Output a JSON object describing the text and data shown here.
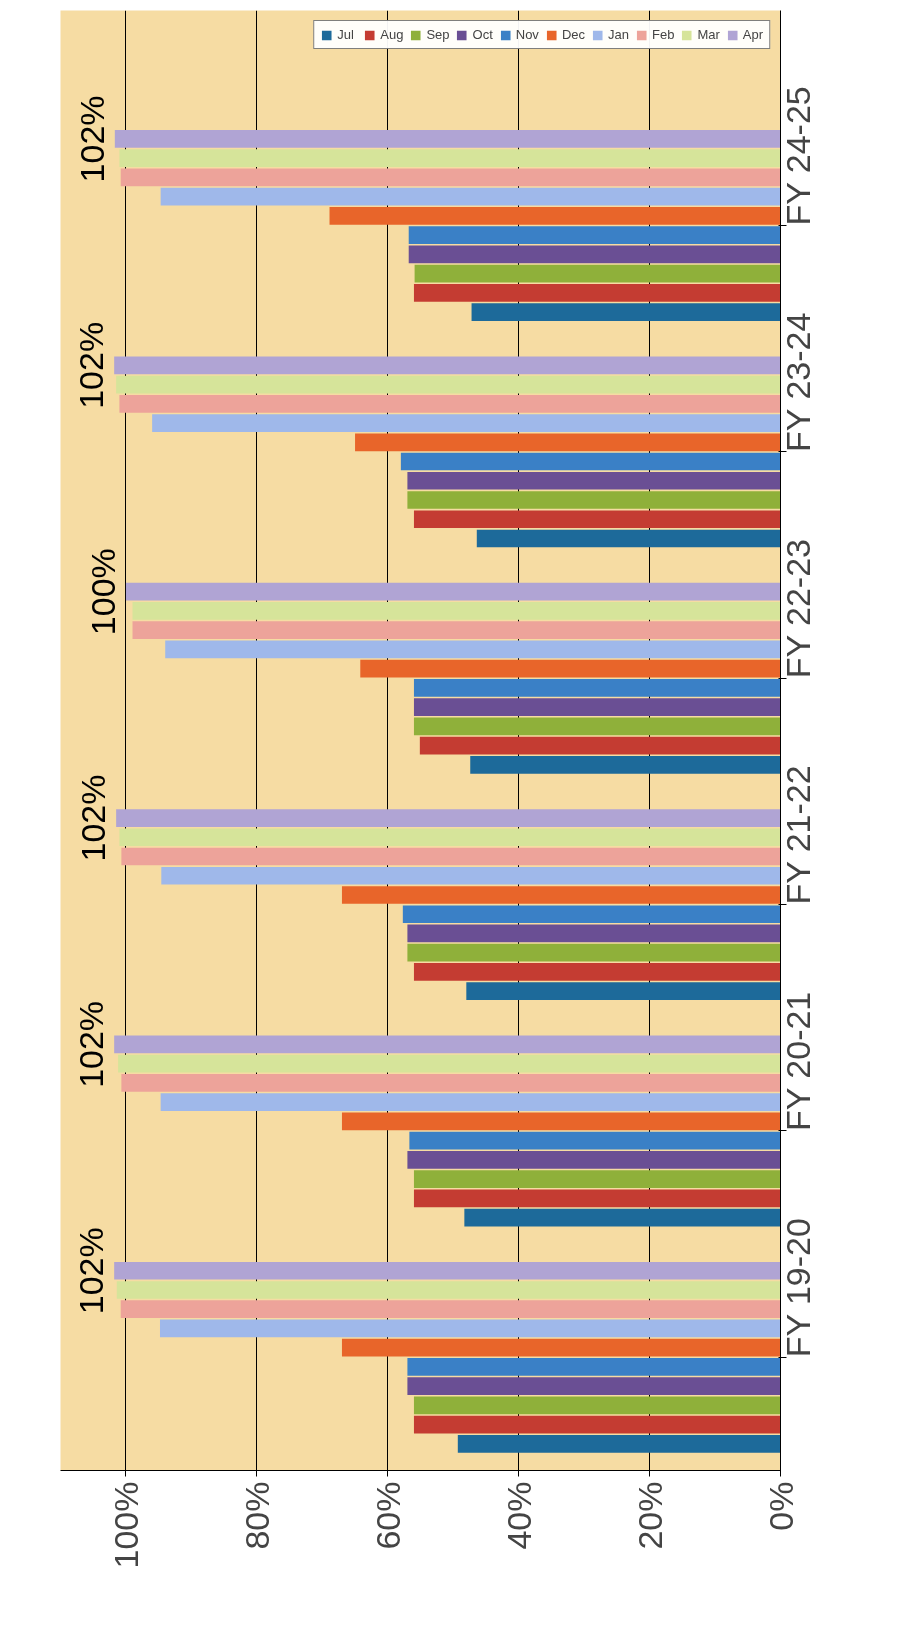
{
  "chart_data": {
    "type": "bar",
    "orientation": "horizontal",
    "categories": [
      "FY 24-25",
      "FY 23-24",
      "FY 22-23",
      "FY 21-22",
      "FY 20-21",
      "FY 19-20"
    ],
    "series": [
      {
        "name": "Jul",
        "color": "#1d6a9a",
        "values": [
          47.2,
          46.4,
          47.4,
          48,
          48.3,
          49.3
        ]
      },
      {
        "name": "Aug",
        "color": "#c43c32",
        "values": [
          56,
          56,
          55.1,
          56,
          56,
          56
        ]
      },
      {
        "name": "Sep",
        "color": "#8fb03a",
        "values": [
          55.9,
          57,
          56,
          57,
          56,
          56
        ]
      },
      {
        "name": "Oct",
        "color": "#6a4f94",
        "values": [
          56.8,
          57,
          56,
          57,
          57,
          57
        ]
      },
      {
        "name": "Nov",
        "color": "#3a80c6",
        "values": [
          56.8,
          58,
          56,
          57.7,
          56.7,
          57
        ]
      },
      {
        "name": "Dec",
        "color": "#e8652a",
        "values": [
          68.9,
          65,
          64.2,
          67,
          67,
          67
        ]
      },
      {
        "name": "Jan",
        "color": "#9fb8ea",
        "values": [
          94.7,
          96,
          94,
          94.6,
          94.7,
          94.8
        ]
      },
      {
        "name": "Feb",
        "color": "#eda39a",
        "values": [
          100.8,
          101,
          99,
          100.7,
          100.7,
          100.8
        ]
      },
      {
        "name": "Mar",
        "color": "#d6e49a",
        "values": [
          101,
          101.5,
          99,
          101,
          101.2,
          101.4
        ]
      },
      {
        "name": "Apr",
        "color": "#b0a4d4",
        "values": [
          101.7,
          101.8,
          100,
          101.5,
          101.8,
          101.8
        ],
        "value_labels": [
          "102%",
          "102%",
          "100%",
          "102%",
          "102%",
          "102%"
        ]
      }
    ],
    "xlim": [
      110,
      0
    ],
    "xticks": [
      {
        "value": 0,
        "label": "0%"
      },
      {
        "value": 20,
        "label": "20%"
      },
      {
        "value": 40,
        "label": "40%"
      },
      {
        "value": 60,
        "label": "60%"
      },
      {
        "value": 80,
        "label": "80%"
      },
      {
        "value": 100,
        "label": "100%"
      }
    ],
    "grid": "x",
    "legend": "top right"
  }
}
